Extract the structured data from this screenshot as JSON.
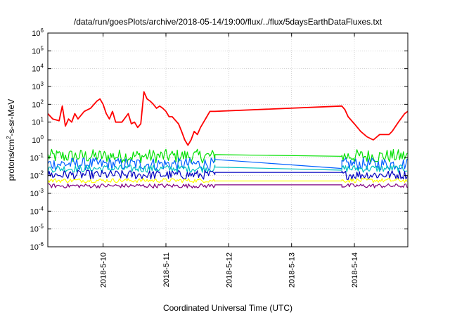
{
  "chart_data": {
    "type": "line",
    "title": "/data/run/goesPlots/archive/2018-05-14/19:00/flux/../flux/5daysEarthDataFluxes.txt",
    "xlabel": "Coordinated Universal Time (UTC)",
    "ylabel": {
      "pre": "protons/cm",
      "sup": "2",
      "post": "-s-sr-MeV"
    },
    "yscale": "log",
    "ylim_exp": [
      -6,
      6
    ],
    "y_ticks": [
      {
        "base": "10",
        "exp": "-6",
        "e": -6
      },
      {
        "base": "10",
        "exp": "-5",
        "e": -5
      },
      {
        "base": "10",
        "exp": "-4",
        "e": -4
      },
      {
        "base": "10",
        "exp": "-3",
        "e": -3
      },
      {
        "base": "10",
        "exp": "-2",
        "e": -2
      },
      {
        "base": "10",
        "exp": "-1",
        "e": -1
      },
      {
        "base": "10",
        "exp": "0",
        "e": 0
      },
      {
        "base": "10",
        "exp": "1",
        "e": 1
      },
      {
        "base": "10",
        "exp": "2",
        "e": 2
      },
      {
        "base": "10",
        "exp": "3",
        "e": 3
      },
      {
        "base": "10",
        "exp": "4",
        "e": 4
      },
      {
        "base": "10",
        "exp": "5",
        "e": 5
      },
      {
        "base": "10",
        "exp": "6",
        "e": 6
      }
    ],
    "xlim_days": [
      9.12,
      14.85
    ],
    "x_ticks": [
      {
        "label": "2018-5-10",
        "day": 10
      },
      {
        "label": "2018-5-11",
        "day": 11
      },
      {
        "label": "2018-5-12",
        "day": 12
      },
      {
        "label": "2018-5-13",
        "day": 13
      },
      {
        "label": "2018-5-14",
        "day": 14
      }
    ],
    "grid": true,
    "data_gap_days": [
      11.78,
      13.8
    ],
    "series": [
      {
        "color": "#ff0000",
        "x": [
          9.12,
          9.2,
          9.3,
          9.35,
          9.4,
          9.45,
          9.5,
          9.55,
          9.6,
          9.7,
          9.8,
          9.9,
          9.95,
          10.0,
          10.05,
          10.1,
          10.15,
          10.2,
          10.3,
          10.4,
          10.45,
          10.5,
          10.55,
          10.6,
          10.65,
          10.7,
          10.75,
          10.8,
          10.85,
          10.9,
          10.95,
          11.0,
          11.05,
          11.1,
          11.2,
          11.25,
          11.3,
          11.35,
          11.4,
          11.45,
          11.5,
          11.55,
          11.6,
          11.65,
          11.7,
          11.78,
          13.8,
          13.85,
          13.9,
          14.0,
          14.1,
          14.2,
          14.3,
          14.4,
          14.5,
          14.55,
          14.6,
          14.7,
          14.8,
          14.85
        ],
        "y": [
          30,
          15,
          12,
          80,
          6,
          15,
          10,
          30,
          15,
          40,
          60,
          150,
          200,
          100,
          30,
          15,
          40,
          10,
          10,
          30,
          8,
          10,
          5,
          8,
          500,
          200,
          150,
          100,
          60,
          80,
          60,
          40,
          20,
          20,
          8,
          3,
          1,
          0.5,
          1,
          3,
          2,
          5,
          10,
          20,
          40,
          40,
          80,
          50,
          20,
          8,
          3,
          1.5,
          1,
          2,
          2,
          2,
          3,
          10,
          30,
          40
        ]
      },
      {
        "color": "#00e000",
        "x": [
          9.12,
          11.78,
          13.8,
          14.85
        ],
        "y_band": [
          [
            0.05,
            0.3
          ],
          [
            0.15,
            0.15
          ],
          [
            0.12,
            0.12
          ],
          [
            0.05,
            0.3
          ]
        ]
      },
      {
        "color": "#0060ff",
        "x": [
          9.12,
          11.78,
          13.8,
          14.85
        ],
        "y_band": [
          [
            0.02,
            0.1
          ],
          [
            0.08,
            0.08
          ],
          [
            0.025,
            0.025
          ],
          [
            0.02,
            0.1
          ]
        ]
      },
      {
        "color": "#00c0c0",
        "x": [
          9.12,
          11.78,
          13.8,
          14.85
        ],
        "y_band": [
          [
            0.015,
            0.04
          ],
          [
            0.03,
            0.03
          ],
          [
            0.02,
            0.02
          ],
          [
            0.015,
            0.04
          ]
        ]
      },
      {
        "color": "#0000c0",
        "x": [
          9.12,
          11.78,
          13.8,
          14.85
        ],
        "y_band": [
          [
            0.006,
            0.02
          ],
          [
            0.015,
            0.015
          ],
          [
            0.015,
            0.015
          ],
          [
            0.006,
            0.02
          ]
        ]
      },
      {
        "color": "#ffff00",
        "x": [
          9.12,
          11.78,
          13.8,
          14.85
        ],
        "y_band": [
          [
            0.004,
            0.007
          ],
          [
            0.005,
            0.005
          ],
          [
            0.005,
            0.005
          ],
          [
            0.004,
            0.007
          ]
        ]
      },
      {
        "color": "#800080",
        "x": [
          9.12,
          11.78,
          13.8,
          14.85
        ],
        "y_band": [
          [
            0.002,
            0.0035
          ],
          [
            0.003,
            0.003
          ],
          [
            0.003,
            0.003
          ],
          [
            0.002,
            0.0035
          ]
        ]
      }
    ]
  }
}
